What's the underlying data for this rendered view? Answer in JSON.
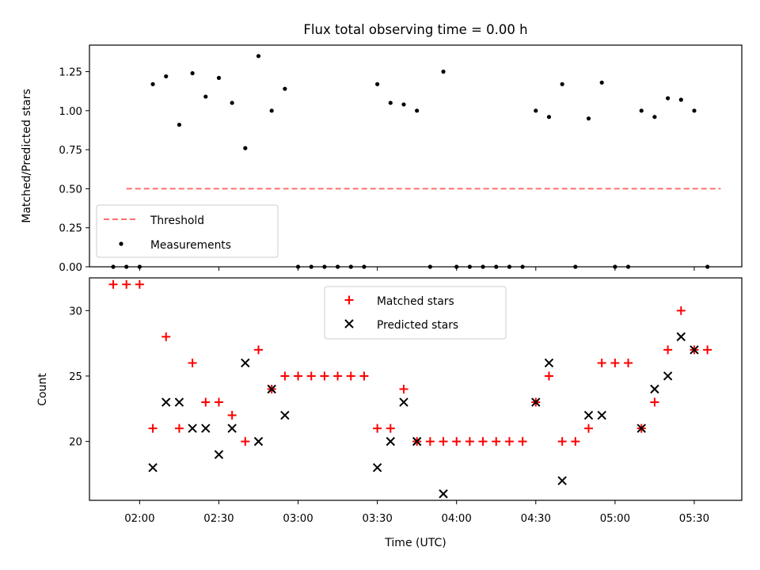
{
  "chart_data": [
    {
      "type": "scatter",
      "title": "Flux total observing time = 0.00 h",
      "ylabel": "Matched/Predicted stars",
      "xlabel": "",
      "ylim": [
        0,
        1.42
      ],
      "yticks": [
        0,
        0.25,
        0.5,
        0.75,
        1.0,
        1.25
      ],
      "ytick_labels": [
        "0.00",
        "0.25",
        "0.50",
        "0.75",
        "1.00",
        "1.25"
      ],
      "threshold": {
        "name": "Threshold",
        "value": 0.5,
        "x_start": "01:55",
        "x_end": "05:40",
        "color": "#ff7070",
        "style": "dashed"
      },
      "legend": {
        "position": "lower-left",
        "entries": [
          "Threshold",
          "Measurements"
        ]
      },
      "series": [
        {
          "name": "Measurements",
          "color": "#000000",
          "x": [
            "01:55",
            "02:00",
            "02:05",
            "02:10",
            "02:15",
            "02:20",
            "02:25",
            "02:30",
            "02:35",
            "02:40",
            "02:45",
            "02:50",
            "02:55",
            "03:00",
            "03:05",
            "03:10",
            "03:15",
            "03:20",
            "03:25",
            "03:30",
            "03:35",
            "03:40",
            "03:45",
            "03:50",
            "03:55",
            "04:00",
            "04:05",
            "04:10",
            "04:15",
            "04:20",
            "04:25",
            "04:30",
            "04:35",
            "04:40",
            "04:45",
            "04:50",
            "04:55",
            "05:00",
            "05:05",
            "05:10",
            "05:15",
            "05:20",
            "05:25",
            "05:30",
            "05:35"
          ],
          "y": [
            0,
            0,
            1.17,
            1.22,
            0.91,
            1.24,
            1.09,
            1.21,
            1.05,
            0.76,
            1.35,
            1.0,
            1.14,
            0,
            0,
            0,
            0,
            0,
            0,
            1.17,
            1.05,
            1.04,
            1.0,
            0,
            1.25,
            0,
            0,
            0,
            0,
            0,
            0,
            1.0,
            0.96,
            1.17,
            0,
            0.95,
            1.18,
            0,
            0,
            1.0,
            0.96,
            1.08,
            1.07,
            1.0,
            0
          ]
        },
        {
          "name": "",
          "color": "#000000",
          "x": [
            "01:50"
          ],
          "y": [
            0
          ]
        }
      ]
    },
    {
      "type": "scatter",
      "title": "",
      "xlabel": "Time (UTC)",
      "ylabel": "Count",
      "ylim": [
        15.5,
        32.5
      ],
      "yticks": [
        20,
        25,
        30
      ],
      "ytick_labels": [
        "20",
        "25",
        "30"
      ],
      "xlim": [
        "01:41",
        "05:48"
      ],
      "xticks": [
        "02:00",
        "02:30",
        "03:00",
        "03:30",
        "04:00",
        "04:30",
        "05:00",
        "05:30"
      ],
      "legend": {
        "position": "upper-center",
        "entries": [
          "Matched stars",
          "Predicted stars"
        ]
      },
      "series": [
        {
          "name": "Matched stars",
          "marker": "plus",
          "color": "#ff0000",
          "x": [
            "01:50",
            "01:55",
            "02:00",
            "02:05",
            "02:10",
            "02:15",
            "02:20",
            "02:25",
            "02:30",
            "02:35",
            "02:40",
            "02:45",
            "02:50",
            "02:55",
            "03:00",
            "03:05",
            "03:10",
            "03:15",
            "03:20",
            "03:25",
            "03:30",
            "03:35",
            "03:40",
            "03:45",
            "03:50",
            "03:55",
            "04:00",
            "04:05",
            "04:10",
            "04:15",
            "04:20",
            "04:25",
            "04:30",
            "04:35",
            "04:40",
            "04:45",
            "04:50",
            "04:55",
            "05:00",
            "05:05",
            "05:10",
            "05:15",
            "05:20",
            "05:25",
            "05:30",
            "05:35"
          ],
          "y": [
            32,
            32,
            32,
            21,
            28,
            21,
            26,
            23,
            23,
            22,
            20,
            27,
            24,
            25,
            25,
            25,
            25,
            25,
            25,
            25,
            21,
            21,
            24,
            20,
            20,
            20,
            20,
            20,
            20,
            20,
            20,
            20,
            23,
            25,
            20,
            20,
            21,
            26,
            26,
            26,
            21,
            23,
            27,
            30,
            27,
            27
          ]
        },
        {
          "name": "Predicted stars",
          "marker": "x",
          "color": "#000000",
          "x": [
            "02:05",
            "02:10",
            "02:15",
            "02:20",
            "02:25",
            "02:30",
            "02:35",
            "02:40",
            "02:45",
            "02:50",
            "02:55",
            "03:30",
            "03:35",
            "03:40",
            "03:45",
            "03:55",
            "04:30",
            "04:35",
            "04:40",
            "04:50",
            "04:55",
            "05:10",
            "05:15",
            "05:20",
            "05:25",
            "05:30"
          ],
          "y": [
            18,
            23,
            23,
            21,
            21,
            19,
            21,
            26,
            20,
            24,
            22,
            18,
            20,
            23,
            20,
            16,
            23,
            26,
            17,
            22,
            22,
            21,
            24,
            25,
            28,
            27
          ]
        }
      ]
    }
  ]
}
